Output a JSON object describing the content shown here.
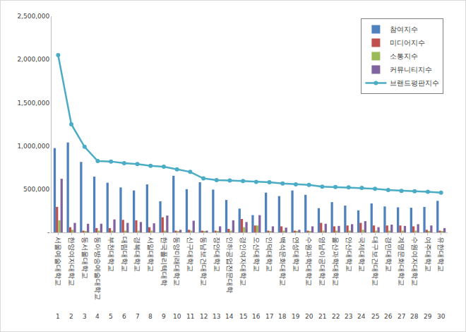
{
  "chart_data": {
    "type": "bar",
    "categories": [
      "서울예술대학교",
      "한양여자대학교",
      "동서울대학교",
      "동아방송예술대학교",
      "부천대학교",
      "대림대학교",
      "경복대학교",
      "서일대학교",
      "한국폴리텍대학",
      "동양미래대학교",
      "신구대학교",
      "동남보건대학교",
      "장안대학교",
      "인하공업전문대학",
      "경인여자대학교",
      "오산대학교",
      "인덕대학교",
      "백석문화대학교",
      "연성대학교",
      "수원과학대학교",
      "영남이공대학교",
      "울산과학대학교",
      "안산대학교",
      "국제대학교",
      "대구보건대학교",
      "경민대학교",
      "계명문화대학교",
      "수원여자대학교",
      "여주대학교",
      "유한대학교"
    ],
    "ranks": [
      1,
      2,
      3,
      4,
      5,
      6,
      7,
      8,
      9,
      10,
      11,
      12,
      13,
      14,
      15,
      16,
      17,
      18,
      19,
      20,
      21,
      22,
      23,
      24,
      25,
      26,
      27,
      28,
      29,
      30
    ],
    "series": [
      {
        "name": "참여지수",
        "type": "bar",
        "color": "#4F81BD",
        "values": [
          975000,
          1040000,
          815000,
          645000,
          575000,
          520000,
          485000,
          555000,
          360000,
          655000,
          500000,
          580000,
          495000,
          375000,
          275000,
          200000,
          460000,
          420000,
          485000,
          435000,
          280000,
          350000,
          310000,
          255000,
          335000,
          300000,
          290000,
          285000,
          295000,
          365000
        ]
      },
      {
        "name": "미디어지수",
        "type": "bar",
        "color": "#C0504D",
        "values": [
          295000,
          60000,
          20000,
          50000,
          50000,
          145000,
          140000,
          60000,
          175000,
          20000,
          30000,
          20000,
          20000,
          40000,
          155000,
          80000,
          20000,
          70000,
          20000,
          20000,
          110000,
          70000,
          80000,
          110000,
          80000,
          80000,
          80000,
          70000,
          30000,
          20000
        ]
      },
      {
        "name": "소통지수",
        "type": "bar",
        "color": "#9BBB59",
        "values": [
          140000,
          30000,
          10000,
          20000,
          20000,
          20000,
          20000,
          20000,
          20000,
          10000,
          20000,
          10000,
          10000,
          20000,
          60000,
          80000,
          10000,
          20000,
          10000,
          10000,
          20000,
          20000,
          20000,
          30000,
          20000,
          20000,
          20000,
          20000,
          10000,
          10000
        ]
      },
      {
        "name": "커뮤니티지수",
        "type": "bar",
        "color": "#8064A2",
        "values": [
          620000,
          110000,
          100000,
          100000,
          150000,
          110000,
          120000,
          105000,
          195000,
          30000,
          135000,
          20000,
          70000,
          140000,
          120000,
          200000,
          70000,
          55000,
          30000,
          70000,
          100000,
          75000,
          95000,
          130000,
          60000,
          90000,
          75000,
          95000,
          80000,
          50000
        ]
      },
      {
        "name": "브랜드평판지수",
        "type": "line",
        "color": "#4BACC6",
        "marker": "circle",
        "values": [
          2050000,
          1250000,
          990000,
          825000,
          820000,
          800000,
          790000,
          770000,
          760000,
          730000,
          700000,
          625000,
          605000,
          600000,
          595000,
          585000,
          580000,
          565000,
          555000,
          550000,
          530000,
          525000,
          520000,
          515000,
          505000,
          490000,
          480000,
          475000,
          470000,
          460000
        ]
      }
    ],
    "ylim": [
      0,
      2500000
    ],
    "yticks": [
      {
        "value": 0,
        "label": "-"
      },
      {
        "value": 500000,
        "label": "500,000"
      },
      {
        "value": 1000000,
        "label": "1,000,000"
      },
      {
        "value": 1500000,
        "label": "1,500,000"
      },
      {
        "value": 2000000,
        "label": "2,000,000"
      },
      {
        "value": 2500000,
        "label": "2,500,000"
      }
    ],
    "grid": false,
    "legend": "top right"
  }
}
